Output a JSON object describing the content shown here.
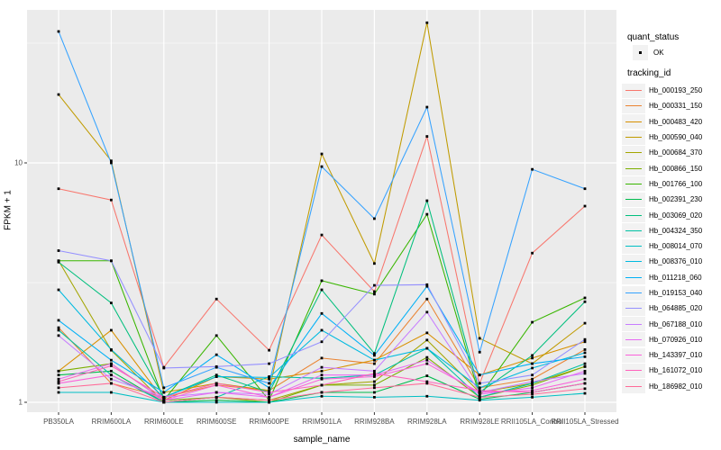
{
  "figure": {
    "x_axis_title": "sample_name",
    "y_axis_title": "FPKM + 1"
  },
  "legend": {
    "quant_status": {
      "title": "quant_status",
      "items": [
        {
          "label": "OK",
          "marker": "black-point"
        }
      ]
    },
    "tracking_id": {
      "title": "tracking_id"
    }
  },
  "chart_data": {
    "type": "line",
    "title": "",
    "xlabel": "sample_name",
    "ylabel": "FPKM + 1",
    "y_scale": "log10",
    "ylim": [
      0.91,
      43.5
    ],
    "y_major_ticks": [
      {
        "label": "1",
        "value": 1
      },
      {
        "label": "10",
        "value": 10
      }
    ],
    "y_minor_gridlines": [
      3.162,
      31.62
    ],
    "grid": "major-white-on-gray-panel",
    "legend_position": "right",
    "panel_color": "#EBEBEB",
    "gridline_color": "#FFFFFF",
    "point_color": "#000000",
    "point_shape": "small-black-square",
    "categories": [
      "PB350LA",
      "RRIM600LA",
      "RRIM600LE",
      "RRIM600SE",
      "RRIM600PE",
      "RRIM901LA",
      "RRIM928BA",
      "RRIM928LA",
      "RRIM928LE",
      "RRII105LA_Control",
      "RRII105LA_Stressed"
    ],
    "series": [
      {
        "name": "Hb_000193_250",
        "color": "#F8766D",
        "values": [
          7.8,
          7.0,
          1.4,
          2.7,
          1.65,
          5.0,
          2.9,
          12.9,
          1.2,
          4.2,
          6.6
        ]
      },
      {
        "name": "Hb_000331_150",
        "color": "#EA8331",
        "values": [
          2.05,
          1.2,
          1.05,
          1.18,
          1.12,
          1.53,
          1.45,
          2.7,
          1.15,
          1.25,
          1.66
        ]
      },
      {
        "name": "Hb_000483_420",
        "color": "#D89000",
        "values": [
          1.35,
          2.0,
          1.02,
          1.28,
          1.25,
          1.35,
          1.5,
          1.95,
          1.3,
          1.53,
          1.79
        ]
      },
      {
        "name": "Hb_000590_040",
        "color": "#C09B00",
        "values": [
          19.3,
          10.2,
          1.1,
          1.2,
          1.12,
          10.9,
          3.8,
          38.5,
          1.85,
          1.45,
          2.14
        ]
      },
      {
        "name": "Hb_000684_370",
        "color": "#A3A500",
        "values": [
          3.9,
          1.65,
          1.0,
          1.05,
          1.02,
          1.18,
          1.22,
          1.82,
          1.1,
          1.2,
          1.41
        ]
      },
      {
        "name": "Hb_000866_150",
        "color": "#7CAE00",
        "values": [
          1.35,
          1.45,
          1.02,
          1.05,
          1.0,
          1.18,
          1.18,
          1.54,
          1.05,
          1.18,
          1.41
        ]
      },
      {
        "name": "Hb_001766_100",
        "color": "#39B600",
        "values": [
          3.9,
          3.9,
          1.02,
          1.9,
          1.02,
          3.22,
          2.83,
          6.1,
          1.06,
          2.16,
          2.73
        ]
      },
      {
        "name": "Hb_002391_230",
        "color": "#00BB4E",
        "values": [
          1.3,
          1.35,
          1.0,
          1.02,
          1.0,
          1.1,
          1.1,
          1.29,
          1.03,
          1.1,
          1.2
        ]
      },
      {
        "name": "Hb_003069_020",
        "color": "#00BF7D",
        "values": [
          3.85,
          2.6,
          1.05,
          1.3,
          1.1,
          2.95,
          1.6,
          6.95,
          1.1,
          1.57,
          2.63
        ]
      },
      {
        "name": "Hb_004324_350",
        "color": "#00C1A3",
        "values": [
          2.0,
          1.3,
          1.0,
          1.05,
          1.28,
          1.26,
          1.3,
          1.68,
          1.05,
          1.2,
          1.45
        ]
      },
      {
        "name": "Hb_008014_070",
        "color": "#00BFC4",
        "values": [
          1.1,
          1.1,
          1.0,
          1.0,
          1.0,
          1.06,
          1.05,
          1.06,
          1.02,
          1.05,
          1.09
        ]
      },
      {
        "name": "Hb_008376_010",
        "color": "#00BAE0",
        "values": [
          2.95,
          1.66,
          1.05,
          1.28,
          1.27,
          2.0,
          1.5,
          1.68,
          1.15,
          1.39,
          1.61
        ]
      },
      {
        "name": "Hb_011218_060",
        "color": "#00B0F6",
        "values": [
          2.2,
          1.5,
          1.1,
          1.58,
          1.15,
          2.35,
          1.57,
          3.05,
          1.3,
          1.45,
          1.55
        ]
      },
      {
        "name": "Hb_019153_040",
        "color": "#35A2FF",
        "values": [
          35.4,
          10.0,
          1.15,
          1.4,
          1.2,
          9.65,
          5.85,
          17.1,
          1.62,
          9.4,
          7.8
        ]
      },
      {
        "name": "Hb_064885_020",
        "color": "#9590FF",
        "values": [
          4.3,
          3.9,
          1.39,
          1.41,
          1.45,
          1.79,
          3.08,
          3.1,
          1.2,
          1.3,
          1.83
        ]
      },
      {
        "name": "Hb_067188_010",
        "color": "#C77CFF",
        "values": [
          1.9,
          1.25,
          1.05,
          1.1,
          1.08,
          1.4,
          1.35,
          2.38,
          1.1,
          1.22,
          1.32
        ]
      },
      {
        "name": "Hb_070926_010",
        "color": "#E76BF3",
        "values": [
          1.25,
          1.45,
          1.02,
          1.1,
          1.05,
          1.3,
          1.3,
          1.5,
          1.08,
          1.15,
          1.35
        ]
      },
      {
        "name": "Hb_143397_010",
        "color": "#FA62DB",
        "values": [
          1.2,
          1.3,
          1.02,
          1.18,
          1.05,
          1.25,
          1.28,
          1.45,
          1.1,
          1.12,
          1.25
        ]
      },
      {
        "name": "Hb_161072_010",
        "color": "#FF62BC",
        "values": [
          1.22,
          1.42,
          1.05,
          1.2,
          1.1,
          1.18,
          1.32,
          1.22,
          1.12,
          1.1,
          1.2
        ]
      },
      {
        "name": "Hb_186982_010",
        "color": "#FF6A98",
        "values": [
          1.15,
          1.2,
          1.0,
          1.05,
          1.02,
          1.1,
          1.15,
          1.2,
          1.05,
          1.08,
          1.14
        ]
      }
    ]
  }
}
